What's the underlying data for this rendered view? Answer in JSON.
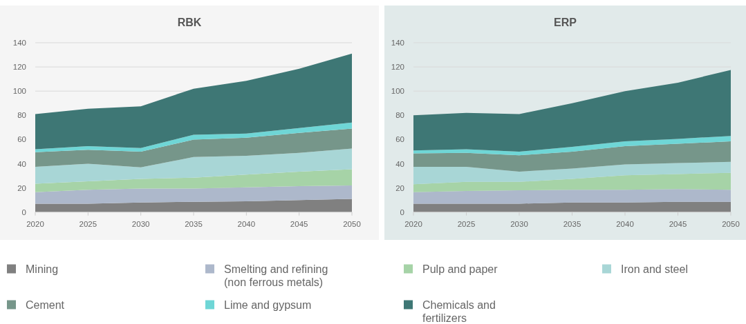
{
  "chart_data": [
    {
      "type": "area",
      "title": "RBK",
      "stacked": true,
      "x": [
        2020,
        2025,
        2030,
        2035,
        2040,
        2045,
        2050
      ],
      "xlim": [
        2020,
        2050
      ],
      "xticks": [
        2020,
        2025,
        2030,
        2035,
        2040,
        2045,
        2050
      ],
      "ylim": [
        0,
        140
      ],
      "yticks": [
        0,
        20,
        40,
        60,
        80,
        100,
        120,
        140
      ],
      "grid": "y",
      "legend": "bottom",
      "series": [
        {
          "name": "Mining",
          "color": "#808080",
          "values": [
            7,
            7,
            8,
            8.5,
            9,
            10,
            11
          ]
        },
        {
          "name": "Smelting and refining (non ferrous metals)",
          "color": "#adb8cb",
          "values": [
            9.5,
            11.5,
            11.5,
            11,
            11.5,
            11.5,
            11
          ]
        },
        {
          "name": "Pulp and paper",
          "color": "#a6d3a7",
          "values": [
            7,
            7,
            8,
            9,
            10.5,
            12,
            13.5
          ]
        },
        {
          "name": "Iron and steel",
          "color": "#a8d6d6",
          "values": [
            14,
            14.5,
            9.5,
            17,
            15.5,
            15.5,
            17
          ]
        },
        {
          "name": "Cement",
          "color": "#76968a",
          "values": [
            12,
            11.5,
            13,
            14.5,
            15,
            16.5,
            16.5
          ]
        },
        {
          "name": "Lime and gypsum",
          "color": "#6fd6d6",
          "values": [
            2.5,
            3,
            3,
            4,
            3.5,
            4,
            5
          ]
        },
        {
          "name": "Chemicals and fertilizers",
          "color": "#3e7775",
          "values": [
            29,
            31,
            34.5,
            38,
            43.5,
            49,
            57
          ]
        }
      ]
    },
    {
      "type": "area",
      "title": "ERP",
      "stacked": true,
      "x": [
        2020,
        2025,
        2030,
        2035,
        2040,
        2045,
        2050
      ],
      "xlim": [
        2020,
        2050
      ],
      "xticks": [
        2020,
        2025,
        2030,
        2035,
        2040,
        2045,
        2050
      ],
      "ylim": [
        0,
        140
      ],
      "yticks": [
        0,
        20,
        40,
        60,
        80,
        100,
        120,
        140
      ],
      "grid": "y",
      "legend": "bottom",
      "series": [
        {
          "name": "Mining",
          "color": "#808080",
          "values": [
            7,
            7,
            7,
            8,
            8,
            8.5,
            8.5
          ]
        },
        {
          "name": "Smelting and refining (non ferrous metals)",
          "color": "#adb8cb",
          "values": [
            9.5,
            10.5,
            11,
            10.5,
            10.5,
            10.5,
            10
          ]
        },
        {
          "name": "Pulp and paper",
          "color": "#a6d3a7",
          "values": [
            6.5,
            7.5,
            7,
            9,
            12,
            12.5,
            14
          ]
        },
        {
          "name": "Iron and steel",
          "color": "#a8d6d6",
          "values": [
            14.5,
            12.5,
            8.5,
            8.5,
            9,
            9,
            9
          ]
        },
        {
          "name": "Cement",
          "color": "#76968a",
          "values": [
            11,
            11.5,
            13.5,
            14,
            15,
            16,
            17
          ]
        },
        {
          "name": "Lime and gypsum",
          "color": "#6fd6d6",
          "values": [
            2.5,
            3,
            3,
            4,
            4,
            4,
            4.5
          ]
        },
        {
          "name": "Chemicals and fertilizers",
          "color": "#3e7775",
          "values": [
            29,
            30,
            31,
            36,
            41.5,
            46.5,
            54.5
          ]
        }
      ]
    }
  ]
}
